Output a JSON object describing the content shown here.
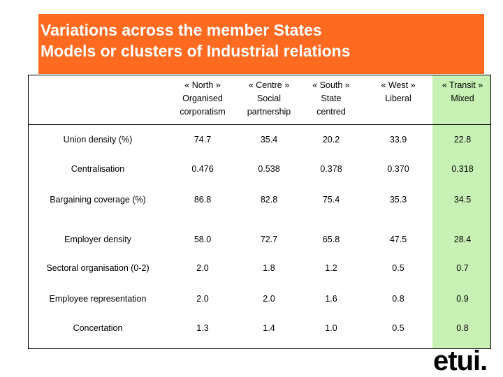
{
  "title": {
    "line1": "Variations across the member States",
    "line2": "Models or clusters of Industrial relations"
  },
  "columns": [
    {
      "line1": "« North »",
      "line2": "Organised",
      "line3": "corporatism"
    },
    {
      "line1": "« Centre »",
      "line2": "Social",
      "line3": "partnership"
    },
    {
      "line1": "« South »",
      "line2": "State",
      "line3": "centred"
    },
    {
      "line1": "« West »",
      "line2": "Liberal",
      "line3": ""
    },
    {
      "line1": "« Transit »",
      "line2": "Mixed",
      "line3": ""
    }
  ],
  "rows": [
    {
      "label": "Union density (%)",
      "values": [
        "74.7",
        "35.4",
        "20.2",
        "33.9",
        "22.8"
      ]
    },
    {
      "label": "Centralisation",
      "values": [
        "0.476",
        "0.538",
        "0.378",
        "0.370",
        "0.318"
      ]
    },
    {
      "label": "Bargaining coverage (%)",
      "values": [
        "86.8",
        "82.8",
        "75.4",
        "35.3",
        "34.5"
      ]
    },
    {
      "label": "Employer density",
      "values": [
        "58.0",
        "72.7",
        "65.8",
        "47.5",
        "28.4"
      ]
    },
    {
      "label": "Sectoral organisation (0-2)",
      "values": [
        "2.0",
        "1.8",
        "1.2",
        "0.5",
        "0.7"
      ]
    },
    {
      "label": "Employee representation",
      "values": [
        "2.0",
        "2.0",
        "1.6",
        "0.8",
        "0.9"
      ]
    },
    {
      "label": "Concertation",
      "values": [
        "1.3",
        "1.4",
        "1.0",
        "0.5",
        "0.8"
      ]
    }
  ],
  "logo": {
    "text": "etui."
  },
  "colors": {
    "title_bg": "#ff6a21",
    "highlight_col": "#c8f2b5"
  }
}
